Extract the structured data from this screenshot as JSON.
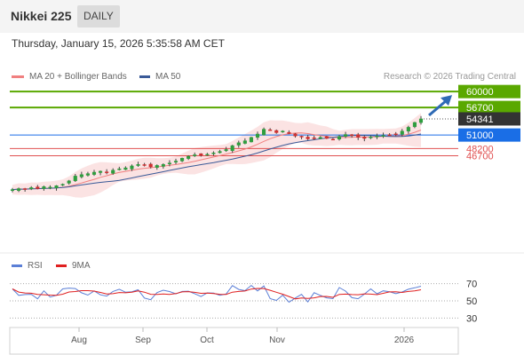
{
  "header": {
    "title": "Nikkei 225",
    "interval": "DAILY"
  },
  "timestamp": "Thursday, January 15, 2026 5:35:58 AM CET",
  "legend": {
    "bollinger": {
      "label": "MA 20 + Bollinger Bands",
      "color": "#f08080"
    },
    "ma50": {
      "label": "MA 50",
      "color": "#3a5a98"
    },
    "rsi": {
      "label": "RSI",
      "color": "#5b7fd6"
    },
    "rsi_ma": {
      "label": "9MA",
      "color": "#e02020"
    }
  },
  "source": "Research © 2026 Trading Central",
  "levels": [
    {
      "label": "60000",
      "value": 60000,
      "kind": "resistance",
      "color": "#5aa800"
    },
    {
      "label": "56700",
      "value": 56700,
      "kind": "resistance",
      "color": "#5aa800"
    },
    {
      "label": "54341",
      "value": 54341,
      "kind": "last",
      "color": "#333333"
    },
    {
      "label": "51000",
      "value": 51000,
      "kind": "pivot",
      "color": "#1a6ee6"
    },
    {
      "label": "48200",
      "value": 48200,
      "kind": "support",
      "color": "#e05050"
    },
    {
      "label": "46700",
      "value": 46700,
      "kind": "support",
      "color": "#e05050"
    }
  ],
  "chart_data": {
    "type": "candlestick",
    "x_ticks": [
      "Aug",
      "Sep",
      "Oct",
      "Nov",
      "2026"
    ],
    "price_axis": {
      "ylim": [
        27500,
        61500
      ]
    },
    "price_series_approx": [
      39700,
      39900,
      39800,
      40100,
      39900,
      40300,
      40200,
      40500,
      40800,
      41500,
      42500,
      42800,
      43000,
      43300,
      43500,
      43200,
      43700,
      44000,
      44200,
      44600,
      44900,
      44800,
      44400,
      44700,
      44900,
      45200,
      45600,
      46200,
      46600,
      46900,
      46800,
      47000,
      47300,
      47600,
      48000,
      48800,
      49400,
      49800,
      50500,
      51200,
      52200,
      52000,
      51500,
      51800,
      51300,
      50800,
      50600,
      50200,
      50400,
      50500,
      50300,
      50100,
      50700,
      51100,
      51000,
      50500,
      50300,
      50600,
      50800,
      50900,
      51000,
      51200,
      51800,
      52600,
      53600,
      54341
    ],
    "rsi_axis": {
      "ylim": [
        20,
        80
      ],
      "ticks": [
        70,
        50,
        30
      ]
    }
  }
}
